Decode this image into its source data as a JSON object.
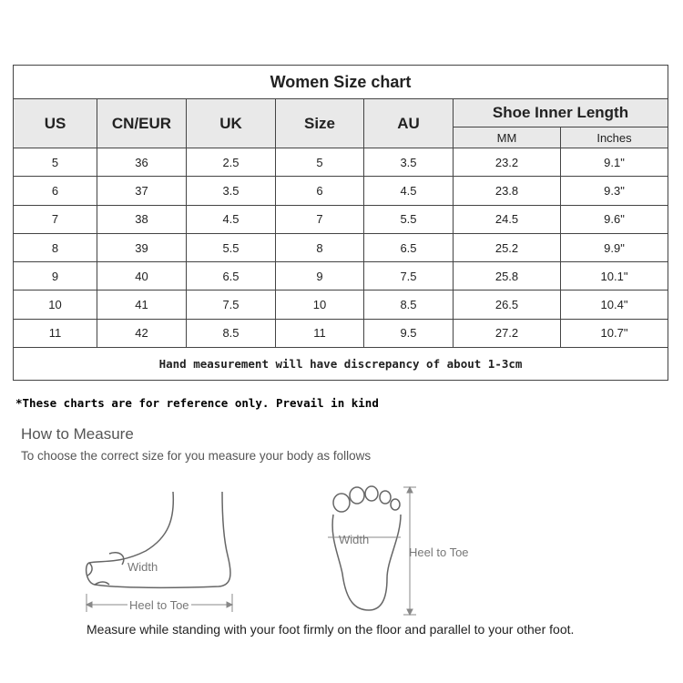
{
  "table": {
    "title": "Women Size chart",
    "headers": [
      "US",
      "CN/EUR",
      "UK",
      "Size",
      "AU"
    ],
    "group_header": "Shoe Inner Length",
    "sub_headers": [
      "MM",
      "Inches"
    ],
    "rows": [
      [
        "5",
        "36",
        "2.5",
        "5",
        "3.5",
        "23.2",
        "9.1\""
      ],
      [
        "6",
        "37",
        "3.5",
        "6",
        "4.5",
        "23.8",
        "9.3\""
      ],
      [
        "7",
        "38",
        "4.5",
        "7",
        "5.5",
        "24.5",
        "9.6\""
      ],
      [
        "8",
        "39",
        "5.5",
        "8",
        "6.5",
        "25.2",
        "9.9\""
      ],
      [
        "9",
        "40",
        "6.5",
        "9",
        "7.5",
        "25.8",
        "10.1\""
      ],
      [
        "10",
        "41",
        "7.5",
        "10",
        "8.5",
        "26.5",
        "10.4\""
      ],
      [
        "11",
        "42",
        "8.5",
        "11",
        "9.5",
        "27.2",
        "10.7\""
      ]
    ],
    "note": "Hand measurement will have discrepancy of about 1-3cm"
  },
  "disclaimer": "*These charts are for reference only. Prevail in kind",
  "how_to": {
    "title": "How to Measure",
    "subtitle": "To choose the correct size for you measure your body as follows",
    "labels": {
      "width_side": "Width",
      "heel_side": "Heel to Toe",
      "width_top": "Width",
      "heel_top": "Heel to Toe"
    },
    "caption": "Measure while standing with your foot firmly on the floor and parallel to your other foot."
  }
}
